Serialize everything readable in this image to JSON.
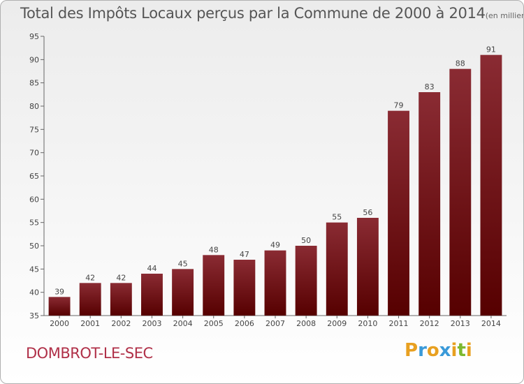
{
  "chart_data": {
    "type": "bar",
    "title": "Total des Impôts Locaux perçus par la Commune de 2000 à 2014",
    "subtitle": "(en milliers d'€)",
    "categories": [
      "2000",
      "2001",
      "2002",
      "2003",
      "2004",
      "2005",
      "2006",
      "2007",
      "2008",
      "2009",
      "2010",
      "2011",
      "2012",
      "2013",
      "2014"
    ],
    "values": [
      39,
      42,
      42,
      44,
      45,
      48,
      47,
      49,
      50,
      55,
      56,
      79,
      83,
      88,
      91
    ],
    "ylim": [
      35,
      95
    ],
    "yticks": [
      35,
      40,
      45,
      50,
      55,
      60,
      65,
      70,
      75,
      80,
      85,
      90,
      95
    ],
    "xlabel": "",
    "ylabel": "",
    "grid": false,
    "bar_color_top": "#8a2b33",
    "bar_color_bottom": "#560000"
  },
  "commune": "DOMBROT-LE-SEC",
  "brand": {
    "letters": [
      "P",
      "r",
      "o",
      "x",
      "i",
      "t",
      "i"
    ],
    "colors": [
      "#e8a020",
      "#3a9ad9",
      "#e8a020",
      "#3a9ad9",
      "#e8a020",
      "#7cb82f",
      "#e8a020"
    ]
  }
}
